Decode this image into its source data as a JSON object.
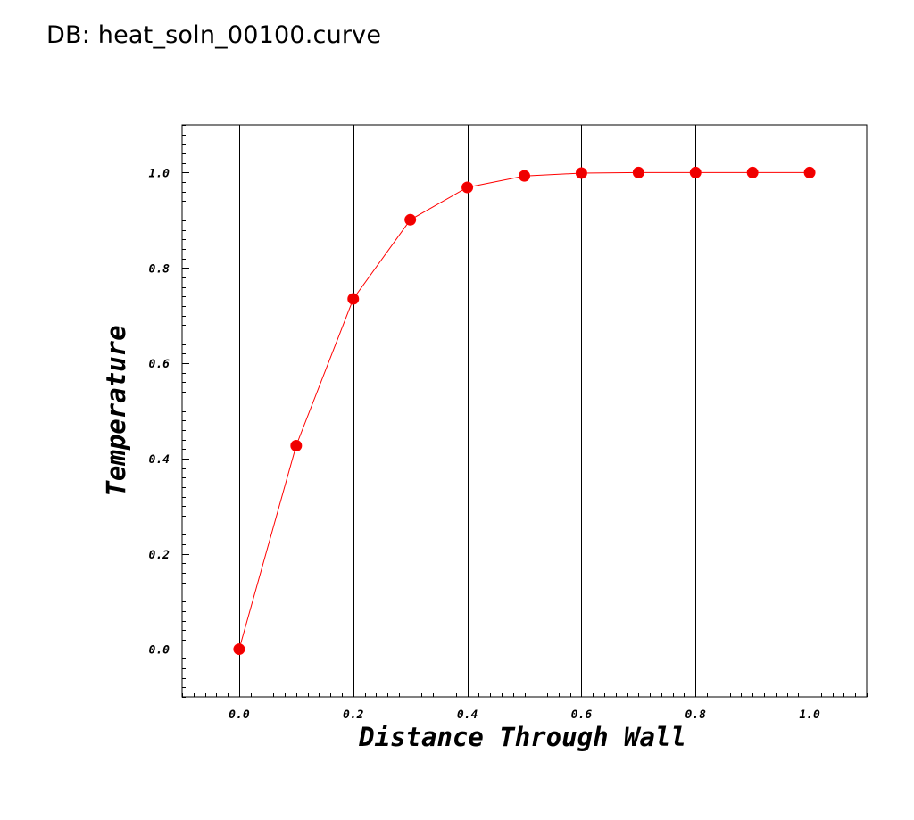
{
  "header": {
    "db_label": "DB: heat_soln_00100.curve"
  },
  "chart_data": {
    "type": "line",
    "title": "",
    "xlabel": "Distance Through Wall",
    "ylabel": "Temperature",
    "xlim": [
      -0.1,
      1.1
    ],
    "ylim": [
      -0.1,
      1.1
    ],
    "x_ticks": [
      0.0,
      0.2,
      0.4,
      0.6,
      0.8,
      1.0
    ],
    "x_tick_labels": [
      "0.0",
      "0.2",
      "0.4",
      "0.6",
      "0.8",
      "1.0"
    ],
    "y_ticks": [
      0.0,
      0.2,
      0.4,
      0.6,
      0.8,
      1.0
    ],
    "y_tick_labels": [
      "0.0",
      "0.2",
      "0.4",
      "0.6",
      "0.8",
      "1.0"
    ],
    "grid": "vertical-major",
    "series": [
      {
        "x": [
          0.0,
          0.1,
          0.2,
          0.3,
          0.4,
          0.5,
          0.6,
          0.7,
          0.8,
          0.9,
          1.0
        ],
        "y": [
          0.0,
          0.427,
          0.735,
          0.901,
          0.969,
          0.993,
          0.999,
          1.0,
          1.0,
          1.0,
          1.0
        ],
        "color": "#ff0000",
        "marker_color": "#ee0000",
        "marker": "circle"
      }
    ]
  }
}
